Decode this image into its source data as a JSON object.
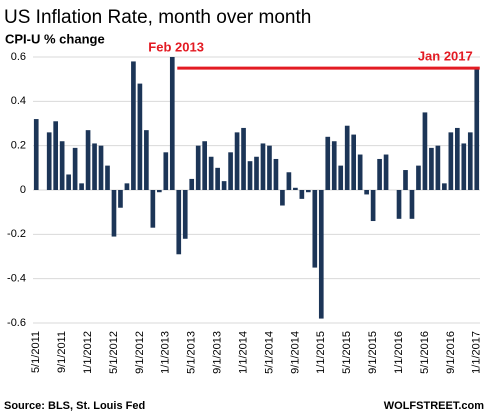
{
  "chart_data": {
    "type": "bar",
    "title": "US Inflation Rate, month over month",
    "subtitle": "CPI-U % change",
    "annotations": [
      "Feb 2013",
      "Jan 2017"
    ],
    "source": "Source: BLS, St. Louis Fed",
    "credit": "WOLFSTREET.com",
    "color": "#1c3557",
    "annotation_color": "#e31b23",
    "categories": [
      "5/1/2011",
      null,
      null,
      null,
      "9/1/2011",
      null,
      null,
      null,
      "1/1/2012",
      null,
      null,
      null,
      "5/1/2012",
      null,
      null,
      null,
      "9/1/2012",
      null,
      null,
      null,
      "1/1/2013",
      null,
      null,
      null,
      "5/1/2013",
      null,
      null,
      null,
      "9/1/2013",
      null,
      null,
      null,
      "1/1/2014",
      null,
      null,
      null,
      "5/1/2014",
      null,
      null,
      null,
      "9/1/2014",
      null,
      null,
      null,
      "1/1/2015",
      null,
      null,
      null,
      "5/1/2015",
      null,
      null,
      null,
      "9/1/2015",
      null,
      null,
      null,
      "1/1/2016",
      null,
      null,
      null,
      "5/1/2016",
      null,
      null,
      null,
      "9/1/2016",
      null,
      null,
      null,
      "1/1/2017"
    ],
    "values": [
      0.32,
      0.0,
      0.26,
      0.31,
      0.22,
      0.07,
      0.19,
      0.03,
      0.27,
      0.21,
      0.2,
      0.11,
      -0.21,
      -0.08,
      0.03,
      0.58,
      0.48,
      0.27,
      -0.17,
      -0.01,
      0.17,
      0.6,
      -0.29,
      -0.22,
      0.05,
      0.2,
      0.22,
      0.15,
      0.1,
      0.04,
      0.17,
      0.26,
      0.28,
      0.13,
      0.15,
      0.21,
      0.2,
      0.14,
      -0.07,
      0.08,
      0.01,
      -0.04,
      -0.01,
      -0.35,
      -0.58,
      0.24,
      0.22,
      0.11,
      0.29,
      0.25,
      0.16,
      -0.02,
      -0.14,
      0.14,
      0.16,
      0.0,
      -0.13,
      0.09,
      -0.13,
      0.11,
      0.35,
      0.19,
      0.2,
      0.03,
      0.26,
      0.28,
      0.21,
      0.26,
      0.55
    ],
    "ylim": [
      -0.6,
      0.6
    ],
    "yticks": [
      -0.6,
      -0.4,
      -0.2,
      0,
      0.2,
      0.4,
      0.6
    ],
    "grid": true
  }
}
